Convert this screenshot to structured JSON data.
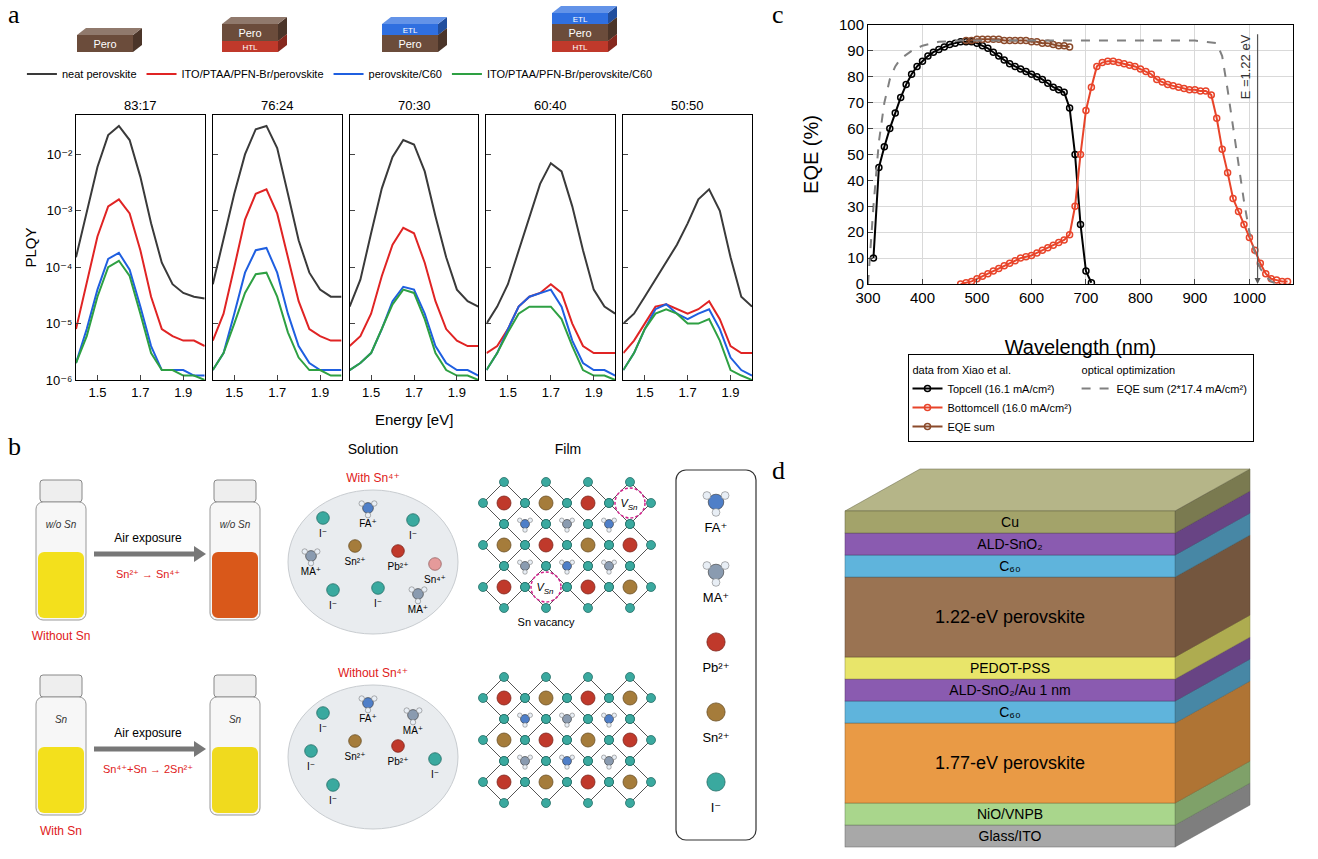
{
  "chart_data": [
    {
      "letter": "a",
      "type": "line",
      "log": "y",
      "x_title": "Energy [eV]",
      "y_title": "PLQY",
      "xlim": [
        1.4,
        2.0
      ],
      "xticks": [
        1.5,
        1.7,
        1.9
      ],
      "ylim": [
        1e-06,
        0.05
      ],
      "yticks": [
        {
          "value": 1e-06,
          "label": "10⁻⁶"
        },
        {
          "value": 1e-05,
          "label": "10⁻⁵"
        },
        {
          "value": 0.0001,
          "label": "10⁻⁴"
        },
        {
          "value": 0.001,
          "label": "10⁻³"
        },
        {
          "value": 0.01,
          "label": "10⁻²"
        }
      ],
      "legend": "top",
      "layer_icons": {
        "main": "Pero",
        "colors": {
          "Pero": "#6b4c3b",
          "HTL": "#c0392b",
          "ETL": "#2f6fe0"
        },
        "stacks": [
          [
            "Pero"
          ],
          [
            "Pero",
            "HTL"
          ],
          [
            "ETL",
            "Pero"
          ],
          [
            "ETL",
            "Pero",
            "HTL"
          ]
        ]
      },
      "x": [
        1.4,
        1.45,
        1.5,
        1.55,
        1.6,
        1.65,
        1.7,
        1.75,
        1.8,
        1.85,
        1.9,
        1.95,
        2.0
      ],
      "series": [
        {
          "name": "neat perovskite",
          "color": "#3a3a3a"
        },
        {
          "name": "ITO/PTAA/PFN-Br/perovskite",
          "color": "#e02424",
          "marker": "peak-circle"
        },
        {
          "name": "perovskite/C60",
          "color": "#1f5fe0",
          "marker": "peak-circle"
        },
        {
          "name": "ITO/PTAA/PFN-Br/perovskite/C60",
          "color": "#2ea043"
        }
      ],
      "subplots": [
        {
          "title": "83:17",
          "values": [
            [
              0.00015,
              0.001,
              0.006,
              0.022,
              0.032,
              0.018,
              0.004,
              0.0006,
              0.00012,
              5e-05,
              3.5e-05,
              3e-05,
              2.8e-05
            ],
            [
              8e-06,
              5e-05,
              0.00035,
              0.0012,
              0.0016,
              0.0009,
              0.0002,
              3e-05,
              8e-06,
              6e-06,
              5e-06,
              5e-06,
              4e-06
            ],
            [
              2e-06,
              8e-06,
              4e-05,
              0.00014,
              0.00018,
              9e-05,
              2e-05,
              4e-06,
              1.5e-06,
              1.5e-06,
              1.5e-06,
              1.2e-06,
              1.2e-06
            ],
            [
              2e-06,
              6e-06,
              3e-05,
              0.0001,
              0.00013,
              7e-05,
              1.5e-05,
              3e-06,
              1.5e-06,
              1.5e-06,
              1.2e-06,
              1.2e-06,
              1e-06
            ]
          ]
        },
        {
          "title": "76:24",
          "values": [
            [
              5e-05,
              0.0003,
              0.002,
              0.01,
              0.028,
              0.032,
              0.013,
              0.002,
              0.0003,
              8e-05,
              4e-05,
              3e-05,
              3e-05
            ],
            [
              5e-06,
              1.5e-05,
              0.0001,
              0.0007,
              0.002,
              0.0024,
              0.0009,
              0.00015,
              2.5e-05,
              8e-06,
              6e-06,
              5e-06,
              5e-06
            ],
            [
              1.5e-06,
              3e-06,
              1.5e-05,
              8e-05,
              0.0002,
              0.00022,
              8e-05,
              1.5e-05,
              4e-06,
              2e-06,
              1.5e-06,
              1.5e-06,
              1.5e-06
            ],
            [
              1.5e-06,
              3e-06,
              1e-05,
              3.5e-05,
              7.5e-05,
              8e-05,
              3e-05,
              7e-06,
              2.5e-06,
              1.5e-06,
              1.5e-06,
              1.2e-06,
              1.2e-06
            ]
          ]
        },
        {
          "title": "70:30",
          "values": [
            [
              2e-05,
              6e-05,
              0.0004,
              0.0025,
              0.009,
              0.018,
              0.015,
              0.005,
              0.0008,
              0.00015,
              4e-05,
              2.5e-05,
              2e-05
            ],
            [
              4e-06,
              6e-06,
              1.5e-05,
              7e-05,
              0.00025,
              0.0005,
              0.0004,
              0.00012,
              2.5e-05,
              8e-06,
              5e-06,
              4e-06,
              4e-06
            ],
            [
              1.5e-06,
              2e-06,
              3e-06,
              8e-06,
              2.5e-05,
              4.5e-05,
              4e-05,
              1.5e-05,
              4e-06,
              2e-06,
              1.5e-06,
              1.5e-06,
              1.2e-06
            ],
            [
              1.5e-06,
              2e-06,
              3e-06,
              8e-06,
              2.2e-05,
              4e-05,
              3.5e-05,
              1.2e-05,
              3e-06,
              1.5e-06,
              1.2e-06,
              1.2e-06,
              1e-06
            ]
          ]
        },
        {
          "title": "60:40",
          "values": [
            [
              1e-05,
              2e-05,
              5e-05,
              0.0002,
              0.0008,
              0.003,
              0.007,
              0.005,
              0.0012,
              0.0002,
              4e-05,
              2e-05,
              1.5e-05
            ],
            [
              3e-06,
              4e-06,
              8e-06,
              2e-05,
              3e-05,
              3.5e-05,
              5e-05,
              3.5e-05,
              1e-05,
              4e-06,
              3e-06,
              3e-06,
              3e-06
            ],
            [
              1.5e-06,
              3e-06,
              8e-06,
              2e-05,
              3e-05,
              3.5e-05,
              4e-05,
              2e-05,
              5e-06,
              2e-06,
              1.5e-06,
              1.5e-06,
              1.2e-06
            ],
            [
              1.5e-06,
              3e-06,
              7e-06,
              1.5e-05,
              2e-05,
              2e-05,
              2e-05,
              1.2e-05,
              4e-06,
              1.5e-06,
              1.2e-06,
              1.2e-06,
              1e-06
            ]
          ]
        },
        {
          "title": "50:50",
          "values": [
            [
              1e-05,
              1.5e-05,
              3e-05,
              6e-05,
              0.00012,
              0.00025,
              0.0006,
              0.0016,
              0.0024,
              0.001,
              0.00015,
              3e-05,
              2e-05
            ],
            [
              3e-06,
              5e-06,
              1e-05,
              2e-05,
              2.2e-05,
              1.8e-05,
              1.5e-05,
              1.8e-05,
              2.5e-05,
              1.2e-05,
              4e-06,
              3e-06,
              3e-06
            ],
            [
              1.5e-06,
              3e-06,
              8e-06,
              1.8e-05,
              2.2e-05,
              1.5e-05,
              1.2e-05,
              1.5e-05,
              1.8e-05,
              8e-06,
              2.5e-06,
              1.5e-06,
              1.2e-06
            ],
            [
              1.5e-06,
              3e-06,
              8e-06,
              1.5e-05,
              1.8e-05,
              1.5e-05,
              1e-05,
              1e-05,
              1.2e-05,
              5e-06,
              1.5e-06,
              1.2e-06,
              1e-06
            ]
          ]
        }
      ]
    },
    {
      "letter": "c",
      "type": "line",
      "grid": true,
      "legend": "bottom",
      "x_title": "Wavelength (nm)",
      "y_title": "EQE (%)",
      "xlim": [
        300,
        1080
      ],
      "xticks": [
        300,
        400,
        500,
        600,
        700,
        800,
        900,
        1000
      ],
      "ylim": [
        0,
        100
      ],
      "yticks": [
        0,
        10,
        20,
        30,
        40,
        50,
        60,
        70,
        80,
        90,
        100
      ],
      "series": [
        {
          "name": "Topcell (16.1 mA/cm²)",
          "legend_group": "data from Xiao et al.",
          "color": "#000000",
          "marker": "open-circle",
          "line_style": "solid",
          "x": [
            310,
            320,
            330,
            340,
            350,
            360,
            370,
            380,
            390,
            400,
            410,
            420,
            430,
            440,
            450,
            460,
            470,
            480,
            490,
            500,
            510,
            520,
            530,
            540,
            550,
            560,
            570,
            580,
            590,
            600,
            610,
            620,
            630,
            640,
            650,
            660,
            670,
            680,
            690,
            700,
            710
          ],
          "values": [
            10,
            45,
            53,
            60,
            66,
            72,
            77,
            81,
            84,
            86,
            88,
            89.5,
            90.5,
            91.5,
            92.5,
            93,
            93.5,
            93.5,
            93.5,
            93,
            92,
            91,
            89.5,
            88,
            86.5,
            85,
            84,
            83,
            82,
            81,
            80,
            79,
            77.5,
            76,
            75,
            74,
            68,
            50,
            23,
            5,
            0.5
          ]
        },
        {
          "name": "Bottomcell (16.0 mA/cm²)",
          "legend_group": "data from Xiao et al.",
          "color": "#e8442a",
          "marker": "open-circle",
          "line_style": "solid",
          "x": [
            470,
            480,
            490,
            500,
            510,
            520,
            530,
            540,
            550,
            560,
            570,
            580,
            590,
            600,
            610,
            620,
            630,
            640,
            650,
            660,
            670,
            680,
            690,
            700,
            710,
            720,
            730,
            740,
            750,
            760,
            770,
            780,
            790,
            800,
            810,
            820,
            830,
            840,
            850,
            860,
            870,
            880,
            890,
            900,
            910,
            920,
            930,
            940,
            950,
            960,
            970,
            980,
            990,
            1000,
            1010,
            1020,
            1030,
            1040,
            1050,
            1060,
            1070
          ],
          "values": [
            0,
            0.5,
            1,
            2,
            3,
            4,
            5,
            6,
            7,
            8,
            9,
            10,
            10.5,
            11,
            12,
            13,
            14,
            15,
            16,
            17,
            19,
            30,
            50,
            67,
            76,
            84,
            85.5,
            86,
            86,
            85.5,
            85,
            84.5,
            84,
            83,
            82,
            81,
            79,
            78,
            77,
            76.5,
            76,
            75.5,
            75,
            75,
            74.5,
            74.5,
            73,
            64,
            52,
            43,
            33,
            28,
            23,
            18,
            13,
            8,
            4,
            2,
            1.5,
            1,
            1
          ]
        },
        {
          "name": "EQE sum",
          "legend_group": "data from Xiao et al.",
          "color": "#8b4a2b",
          "marker": "open-circle",
          "line_style": "solid",
          "x": [
            480,
            490,
            500,
            510,
            520,
            530,
            540,
            550,
            560,
            570,
            580,
            590,
            600,
            610,
            620,
            630,
            640,
            650,
            660,
            670
          ],
          "values": [
            94,
            94,
            94.5,
            94.5,
            94.5,
            94.5,
            94.5,
            94,
            94,
            94,
            94,
            94,
            93.5,
            93.5,
            93,
            93,
            92.5,
            92,
            92,
            91.5
          ]
        },
        {
          "name": "EQE sum (2*17.4 mA/cm²)",
          "legend_group": "optical optimization",
          "color": "#808080",
          "marker": "none",
          "line_style": "dash",
          "x": [
            300,
            310,
            320,
            330,
            340,
            350,
            360,
            380,
            400,
            430,
            470,
            500,
            550,
            900,
            940,
            950,
            960,
            970,
            980,
            990,
            1000,
            1010,
            1020,
            1030,
            1040,
            1050
          ],
          "values": [
            0,
            30,
            55,
            70,
            79,
            84,
            87,
            90,
            92,
            93.5,
            94,
            94,
            94,
            94,
            93,
            88,
            75,
            60,
            45,
            32,
            20,
            12,
            6,
            3,
            1,
            0
          ]
        }
      ],
      "annotations": [
        {
          "text": "E =1.22 eV",
          "x": 1015,
          "y": [
            97,
            0
          ]
        }
      ]
    }
  ],
  "panel_b": {
    "letter": "b",
    "column_heads": [
      "Solution",
      "Film"
    ],
    "rows": [
      {
        "caption": "Without Sn",
        "vial_label": "w/o Sn",
        "arrow_text": "Air exposure",
        "reaction": "Sn²⁺ → Sn⁴⁺",
        "liquid_colors": [
          "#f3e01c",
          "#d9581a"
        ],
        "solution_title": "With Sn⁴⁺",
        "solution_ions": [
          "I⁻",
          "FA⁺",
          "I⁻",
          "MA⁺",
          "Sn²⁺",
          "Pb²⁺",
          "Sn⁴⁺",
          "I⁻",
          "I⁻",
          "MA⁺"
        ],
        "vacancy_symbol": [
          "V",
          "Sn"
        ],
        "vacancy_caption": "Sn vacancy"
      },
      {
        "caption": "With Sn",
        "vial_label": "Sn",
        "arrow_text": "Air exposure",
        "reaction": "Sn⁴⁺+Sn → 2Sn²⁺",
        "liquid_colors": [
          "#f3e01c",
          "#f0da1e"
        ],
        "solution_title": "Without Sn⁴⁺",
        "solution_ions": [
          "I⁻",
          "FA⁺",
          "MA⁺",
          "I⁻",
          "Sn²⁺",
          "Pb²⁺",
          "I⁻",
          "I⁻"
        ]
      }
    ],
    "key": [
      {
        "label": "FA⁺",
        "kind": "molecule",
        "color": "#4f7fc8"
      },
      {
        "label": "MA⁺",
        "kind": "molecule",
        "color": "#8a9bb0"
      },
      {
        "label": "Pb²⁺",
        "kind": "atom",
        "color": "#c0392b"
      },
      {
        "label": "Sn²⁺",
        "kind": "atom",
        "color": "#a57c3b"
      },
      {
        "label": "I⁻",
        "kind": "atom",
        "color": "#3aa99f"
      }
    ],
    "other_ions": [
      {
        "label": "Sn⁴⁺",
        "kind": "atom",
        "color": "#e59a9a"
      }
    ]
  },
  "panel_d": {
    "letter": "d",
    "layers": [
      {
        "label": "Cu",
        "color": "#a3a36a"
      },
      {
        "label": "ALD-SnO₂",
        "color": "#8a5bb0"
      },
      {
        "label": "C₆₀",
        "color": "#5fb4dc"
      },
      {
        "label": "1.22-eV perovskite",
        "color": "#9a7352",
        "thick": true
      },
      {
        "label": "PEDOT-PSS",
        "color": "#e8e56a"
      },
      {
        "label": "ALD-SnO₂/Au 1 nm",
        "color": "#8a5bb0"
      },
      {
        "label": "C₆₀",
        "color": "#5fb4dc"
      },
      {
        "label": "1.77-eV perovskite",
        "color": "#e99a45",
        "thick": true
      },
      {
        "label": "NiO/VNPB",
        "color": "#a9d68c"
      },
      {
        "label": "Glass/ITO",
        "color": "#a8a8a8"
      }
    ]
  }
}
